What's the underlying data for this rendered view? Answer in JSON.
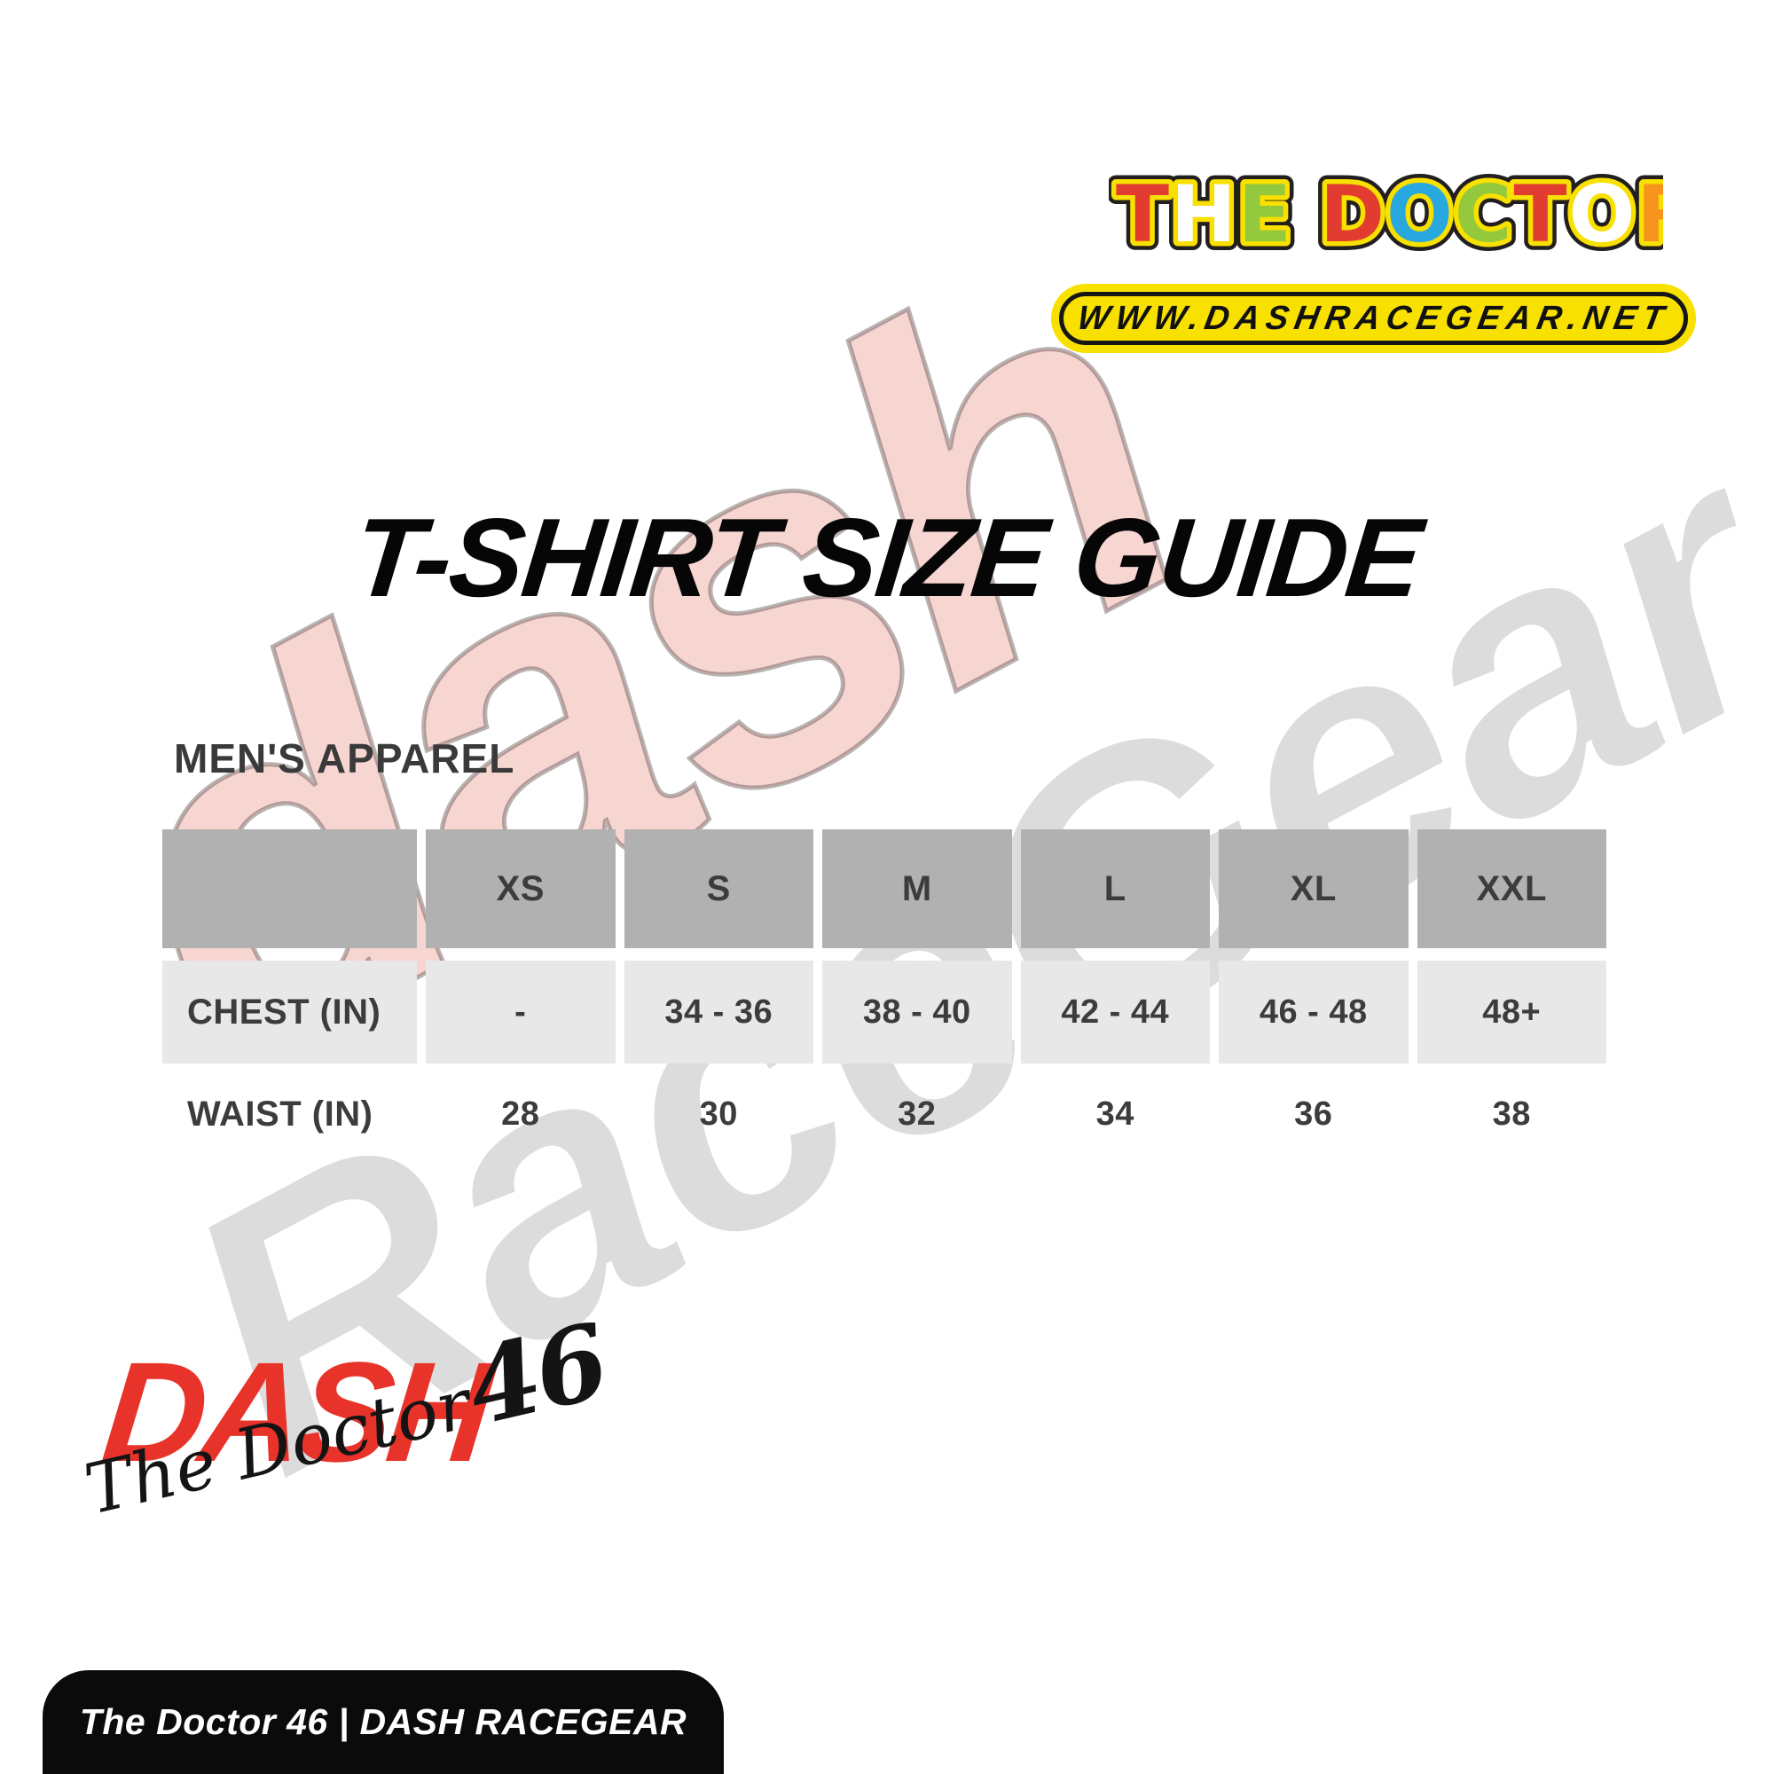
{
  "brand": {
    "logo_text": "THE DOCTOR",
    "word1_letters": [
      {
        "ch": "T",
        "color": "#e23c30"
      },
      {
        "ch": "H",
        "color": "#ffffff"
      },
      {
        "ch": "E",
        "color": "#94c93d"
      }
    ],
    "word2_letters": [
      {
        "ch": "D",
        "color": "#e23c30"
      },
      {
        "ch": "O",
        "color": "#29a8df"
      },
      {
        "ch": "C",
        "color": "#94c93d"
      },
      {
        "ch": "T",
        "color": "#e23c30"
      },
      {
        "ch": "O",
        "color": "#ffffff"
      },
      {
        "ch": "R",
        "color": "#f7941e"
      }
    ],
    "logo_outline_color": "#f8e000",
    "logo_rim_color": "#231f20",
    "website": "WWW.DASHRACEGEAR.NET",
    "website_pill_color": "#f8e000"
  },
  "title": "T-SHIRT SIZE GUIDE",
  "section": {
    "label": "MEN'S APPAREL"
  },
  "size_table": {
    "columns": [
      "",
      "XS",
      "S",
      "M",
      "L",
      "XL",
      "XXL"
    ],
    "rows": [
      {
        "label": "CHEST (IN)",
        "values": [
          "-",
          "34 - 36",
          "38 - 40",
          "42 - 44",
          "46 - 48",
          "48+"
        ]
      },
      {
        "label": "WAIST (IN)",
        "values": [
          "28",
          "30",
          "32",
          "34",
          "36",
          "38"
        ]
      }
    ],
    "header_bg": "#b1b1b1",
    "row_bg": "#e8e8e8"
  },
  "watermark": {
    "word1": "dash",
    "word2": "RaceGear",
    "word1_color": "#e8332a",
    "word2_color": "#c8c8c8"
  },
  "footer": {
    "dash_logo": "DASH",
    "dash_logo_color": "#e8332a",
    "script_text": "The Doctor",
    "script_number": "46",
    "bar_text": "The Doctor 46 | DASH RACEGEAR",
    "bar_bg": "#0b0b0b"
  }
}
